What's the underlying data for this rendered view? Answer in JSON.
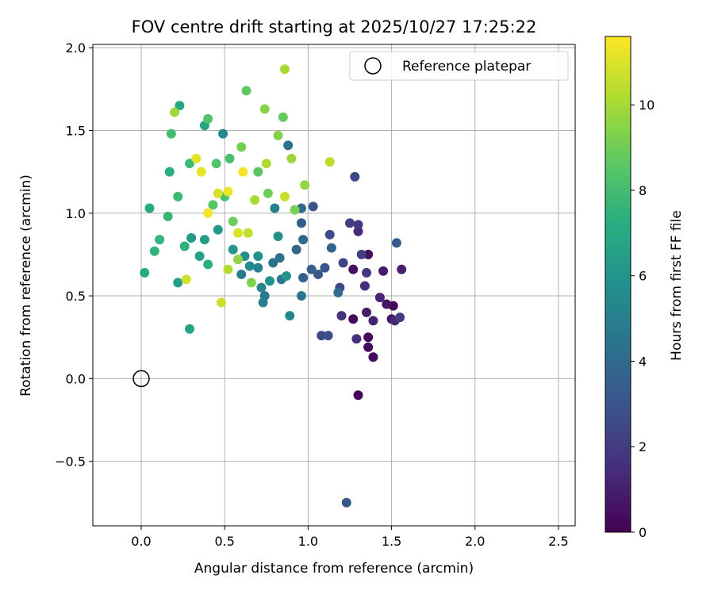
{
  "chart_data": {
    "type": "scatter",
    "title": "FOV centre drift starting at 2025/10/27 17:25:22",
    "xlabel": "Angular distance from reference (arcmin)",
    "ylabel": "Rotation from reference (arcmin)",
    "xlim": [
      -0.29,
      2.6
    ],
    "ylim": [
      -0.89,
      2.02
    ],
    "xticks": [
      0.0,
      0.5,
      1.0,
      1.5,
      2.0,
      2.5
    ],
    "xtick_labels": [
      "0.0",
      "0.5",
      "1.0",
      "1.5",
      "2.0",
      "2.5"
    ],
    "yticks": [
      -0.5,
      0.0,
      0.5,
      1.0,
      1.5,
      2.0
    ],
    "ytick_labels": [
      "−0.5",
      "0.0",
      "0.5",
      "1.0",
      "1.5",
      "2.0"
    ],
    "grid": true,
    "legend": {
      "position": "upper-right",
      "entries": [
        "Reference platepar"
      ]
    },
    "reference_point": {
      "x": 0.0,
      "y": 0.0,
      "label": "Reference platepar"
    },
    "colorbar": {
      "label": "Hours from first FF file",
      "range": [
        0,
        11.6
      ],
      "ticks": [
        0,
        2,
        4,
        6,
        8,
        10
      ],
      "tick_labels": [
        "0",
        "2",
        "4",
        "6",
        "8",
        "10"
      ],
      "colormap": "viridis"
    },
    "points": [
      {
        "x": 1.51,
        "y": 0.44,
        "t": 0.1
      },
      {
        "x": 1.3,
        "y": -0.1,
        "t": 0.1
      },
      {
        "x": 1.36,
        "y": 0.19,
        "t": 0.2
      },
      {
        "x": 1.39,
        "y": 0.13,
        "t": 0.2
      },
      {
        "x": 1.36,
        "y": 0.25,
        "t": 0.3
      },
      {
        "x": 1.27,
        "y": 0.36,
        "t": 0.3
      },
      {
        "x": 1.36,
        "y": 0.75,
        "t": 0.4
      },
      {
        "x": 1.27,
        "y": 0.66,
        "t": 0.5
      },
      {
        "x": 1.47,
        "y": 0.45,
        "t": 0.6
      },
      {
        "x": 1.5,
        "y": 0.36,
        "t": 0.7
      },
      {
        "x": 1.45,
        "y": 0.65,
        "t": 0.8
      },
      {
        "x": 1.35,
        "y": 0.4,
        "t": 0.9
      },
      {
        "x": 1.56,
        "y": 0.66,
        "t": 1.0
      },
      {
        "x": 1.39,
        "y": 0.35,
        "t": 1.1
      },
      {
        "x": 1.43,
        "y": 0.49,
        "t": 1.2
      },
      {
        "x": 1.52,
        "y": 0.35,
        "t": 1.3
      },
      {
        "x": 1.3,
        "y": 0.89,
        "t": 1.4
      },
      {
        "x": 1.34,
        "y": 0.56,
        "t": 1.5
      },
      {
        "x": 1.29,
        "y": 0.24,
        "t": 1.6
      },
      {
        "x": 1.2,
        "y": 0.38,
        "t": 1.7
      },
      {
        "x": 1.35,
        "y": 0.64,
        "t": 1.8
      },
      {
        "x": 1.3,
        "y": 0.93,
        "t": 1.9
      },
      {
        "x": 1.55,
        "y": 0.37,
        "t": 2.0
      },
      {
        "x": 1.32,
        "y": 0.75,
        "t": 2.1
      },
      {
        "x": 1.25,
        "y": 0.94,
        "t": 2.2
      },
      {
        "x": 1.21,
        "y": 0.7,
        "t": 2.3
      },
      {
        "x": 1.28,
        "y": 1.22,
        "t": 2.4
      },
      {
        "x": 1.19,
        "y": 0.55,
        "t": 2.5
      },
      {
        "x": 1.08,
        "y": 0.26,
        "t": 2.6
      },
      {
        "x": 1.13,
        "y": 0.87,
        "t": 2.7
      },
      {
        "x": 1.12,
        "y": 0.26,
        "t": 2.8
      },
      {
        "x": 1.03,
        "y": 1.04,
        "t": 2.9
      },
      {
        "x": 1.1,
        "y": 0.67,
        "t": 3.0
      },
      {
        "x": 1.23,
        "y": -0.75,
        "t": 3.1
      },
      {
        "x": 1.06,
        "y": 0.63,
        "t": 3.2
      },
      {
        "x": 1.53,
        "y": 0.82,
        "t": 3.3
      },
      {
        "x": 0.96,
        "y": 0.94,
        "t": 3.4
      },
      {
        "x": 1.02,
        "y": 0.66,
        "t": 3.5
      },
      {
        "x": 0.97,
        "y": 0.61,
        "t": 3.6
      },
      {
        "x": 1.14,
        "y": 0.79,
        "t": 3.7
      },
      {
        "x": 0.93,
        "y": 0.78,
        "t": 3.8
      },
      {
        "x": 0.97,
        "y": 0.84,
        "t": 3.9
      },
      {
        "x": 0.96,
        "y": 1.03,
        "t": 4.0
      },
      {
        "x": 1.18,
        "y": 0.52,
        "t": 4.1
      },
      {
        "x": 0.88,
        "y": 1.41,
        "t": 4.2
      },
      {
        "x": 0.83,
        "y": 0.73,
        "t": 4.3
      },
      {
        "x": 0.79,
        "y": 0.7,
        "t": 4.4
      },
      {
        "x": 0.96,
        "y": 0.5,
        "t": 4.5
      },
      {
        "x": 0.84,
        "y": 0.6,
        "t": 4.6
      },
      {
        "x": 0.74,
        "y": 0.5,
        "t": 4.7
      },
      {
        "x": 0.6,
        "y": 0.63,
        "t": 4.8
      },
      {
        "x": 0.73,
        "y": 0.46,
        "t": 4.9
      },
      {
        "x": 0.7,
        "y": 0.67,
        "t": 5.0
      },
      {
        "x": 0.8,
        "y": 1.03,
        "t": 5.1
      },
      {
        "x": 0.72,
        "y": 0.55,
        "t": 5.2
      },
      {
        "x": 0.89,
        "y": 0.38,
        "t": 5.3
      },
      {
        "x": 0.49,
        "y": 1.48,
        "t": 5.4
      },
      {
        "x": 0.65,
        "y": 0.68,
        "t": 5.5
      },
      {
        "x": 0.62,
        "y": 0.74,
        "t": 5.6
      },
      {
        "x": 0.82,
        "y": 0.86,
        "t": 5.7
      },
      {
        "x": 0.77,
        "y": 0.59,
        "t": 5.8
      },
      {
        "x": 0.7,
        "y": 0.74,
        "t": 5.9
      },
      {
        "x": 0.87,
        "y": 0.62,
        "t": 6.0
      },
      {
        "x": 0.55,
        "y": 0.78,
        "t": 6.1
      },
      {
        "x": 0.46,
        "y": 0.9,
        "t": 6.2
      },
      {
        "x": 0.3,
        "y": 0.85,
        "t": 6.3
      },
      {
        "x": 0.38,
        "y": 0.84,
        "t": 6.4
      },
      {
        "x": 0.22,
        "y": 0.58,
        "t": 6.5
      },
      {
        "x": 0.35,
        "y": 0.74,
        "t": 6.6
      },
      {
        "x": 0.29,
        "y": 0.3,
        "t": 6.7
      },
      {
        "x": 0.38,
        "y": 1.53,
        "t": 6.8
      },
      {
        "x": 0.23,
        "y": 1.65,
        "t": 6.9
      },
      {
        "x": 0.05,
        "y": 1.03,
        "t": 7.0
      },
      {
        "x": 0.02,
        "y": 0.64,
        "t": 7.1
      },
      {
        "x": 0.17,
        "y": 1.25,
        "t": 7.2
      },
      {
        "x": 0.4,
        "y": 0.69,
        "t": 7.3
      },
      {
        "x": 0.26,
        "y": 0.8,
        "t": 7.4
      },
      {
        "x": 0.08,
        "y": 0.77,
        "t": 7.5
      },
      {
        "x": 0.11,
        "y": 0.84,
        "t": 7.6
      },
      {
        "x": 0.16,
        "y": 0.98,
        "t": 7.7
      },
      {
        "x": 0.22,
        "y": 1.1,
        "t": 7.8
      },
      {
        "x": 0.29,
        "y": 1.3,
        "t": 7.9
      },
      {
        "x": 0.18,
        "y": 1.48,
        "t": 8.0
      },
      {
        "x": 0.53,
        "y": 1.33,
        "t": 8.1
      },
      {
        "x": 0.5,
        "y": 1.1,
        "t": 8.2
      },
      {
        "x": 0.45,
        "y": 1.3,
        "t": 8.3
      },
      {
        "x": 0.4,
        "y": 1.57,
        "t": 8.4
      },
      {
        "x": 0.43,
        "y": 1.05,
        "t": 8.5
      },
      {
        "x": 0.7,
        "y": 1.25,
        "t": 8.6
      },
      {
        "x": 0.63,
        "y": 1.74,
        "t": 8.7
      },
      {
        "x": 0.85,
        "y": 1.58,
        "t": 8.8
      },
      {
        "x": 0.55,
        "y": 0.95,
        "t": 8.9
      },
      {
        "x": 0.76,
        "y": 1.12,
        "t": 9.0
      },
      {
        "x": 0.6,
        "y": 1.4,
        "t": 9.1
      },
      {
        "x": 0.92,
        "y": 1.02,
        "t": 9.2
      },
      {
        "x": 0.66,
        "y": 0.58,
        "t": 9.3
      },
      {
        "x": 0.82,
        "y": 1.47,
        "t": 9.4
      },
      {
        "x": 0.74,
        "y": 1.63,
        "t": 9.5
      },
      {
        "x": 0.58,
        "y": 0.72,
        "t": 9.6
      },
      {
        "x": 0.98,
        "y": 1.17,
        "t": 9.7
      },
      {
        "x": 0.9,
        "y": 1.33,
        "t": 9.8
      },
      {
        "x": 0.2,
        "y": 1.61,
        "t": 9.9
      },
      {
        "x": 0.86,
        "y": 1.87,
        "t": 10.0
      },
      {
        "x": 0.68,
        "y": 1.08,
        "t": 10.1
      },
      {
        "x": 0.75,
        "y": 1.3,
        "t": 10.2
      },
      {
        "x": 0.52,
        "y": 0.66,
        "t": 10.3
      },
      {
        "x": 1.13,
        "y": 1.31,
        "t": 10.4
      },
      {
        "x": 0.64,
        "y": 0.88,
        "t": 10.5
      },
      {
        "x": 0.86,
        "y": 1.1,
        "t": 10.6
      },
      {
        "x": 0.48,
        "y": 0.46,
        "t": 10.7
      },
      {
        "x": 0.27,
        "y": 0.6,
        "t": 10.8
      },
      {
        "x": 0.46,
        "y": 1.12,
        "t": 10.9
      },
      {
        "x": 0.58,
        "y": 0.88,
        "t": 11.0
      },
      {
        "x": 0.33,
        "y": 1.33,
        "t": 11.1
      },
      {
        "x": 0.36,
        "y": 1.25,
        "t": 11.2
      },
      {
        "x": 0.52,
        "y": 1.13,
        "t": 11.3
      },
      {
        "x": 0.61,
        "y": 1.25,
        "t": 11.4
      },
      {
        "x": 0.4,
        "y": 1.0,
        "t": 11.5
      }
    ]
  }
}
